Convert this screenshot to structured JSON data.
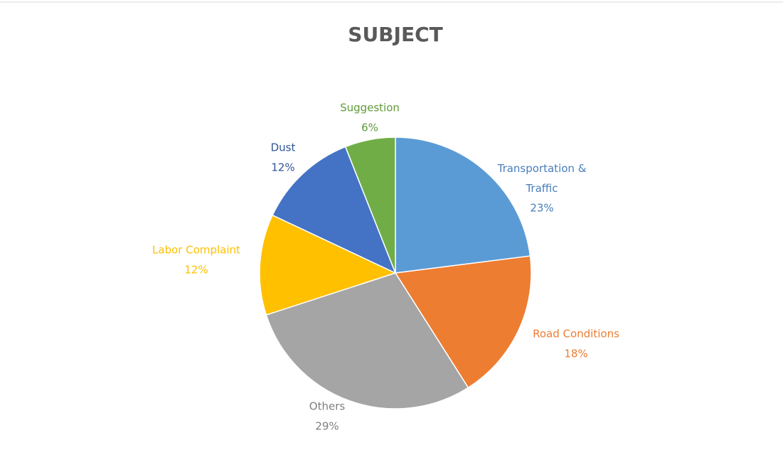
{
  "chart_data": {
    "type": "pie",
    "title": "SUBJECT",
    "categories": [
      "Transportation & Traffic",
      "Road Conditions",
      "Others",
      "Labor Complaint",
      "Dust",
      "Suggestion"
    ],
    "values": [
      23,
      18,
      29,
      12,
      12,
      6
    ],
    "value_labels": [
      "23%",
      "18%",
      "29%",
      "12%",
      "12%",
      "6%"
    ],
    "colors": [
      "#5b9bd5",
      "#ed7d31",
      "#a5a5a5",
      "#ffc000",
      "#4472c4",
      "#70ad47"
    ]
  }
}
